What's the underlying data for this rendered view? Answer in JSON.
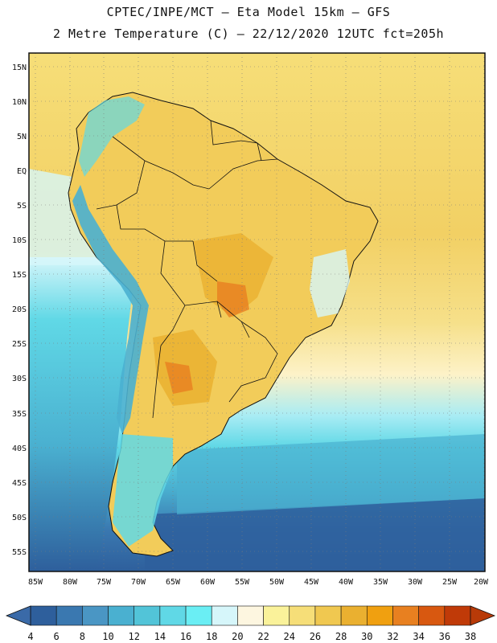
{
  "header": {
    "line1": "CPTEC/INPE/MCT –  Eta Model 15km – GFS",
    "line2": "2 Metre Temperature (C) – 22/12/2020 12UTC fct=205h"
  },
  "map": {
    "lat_labels": [
      "15N",
      "10N",
      "5N",
      "EQ",
      "5S",
      "10S",
      "15S",
      "20S",
      "25S",
      "30S",
      "35S",
      "40S",
      "45S",
      "50S",
      "55S"
    ],
    "lon_labels": [
      "85W",
      "80W",
      "75W",
      "70W",
      "65W",
      "60W",
      "55W",
      "50W",
      "45W",
      "40W",
      "35W",
      "30W",
      "25W",
      "20W"
    ],
    "lat_range": [
      17,
      -58
    ],
    "lon_range": [
      -86,
      -20
    ]
  },
  "colorbar": {
    "labels": [
      "4",
      "6",
      "8",
      "10",
      "12",
      "14",
      "16",
      "18",
      "20",
      "22",
      "24",
      "26",
      "28",
      "30",
      "32",
      "34",
      "36",
      "38"
    ],
    "colors": [
      "#2e5f9c",
      "#3a78b0",
      "#4a96c4",
      "#4ab0d0",
      "#52c4d8",
      "#60d8e6",
      "#6aeef4",
      "#d6f6fa",
      "#fdf6e0",
      "#faf29a",
      "#f6de78",
      "#f0c850",
      "#eab030",
      "#f0a010",
      "#e88020",
      "#d85810",
      "#c03a08"
    ],
    "low_color": "#3a6aa8",
    "high_color": "#b83a08"
  }
}
